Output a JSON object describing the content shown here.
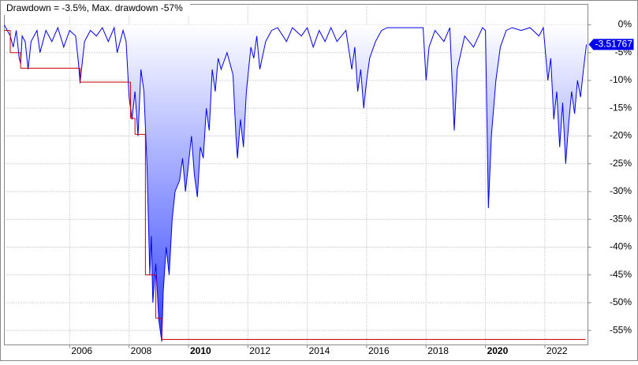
{
  "chart_data": {
    "type": "line",
    "title": "Drawdown = -3.5%, Max. drawdown -57%",
    "xlim": [
      2003.8,
      2023.45
    ],
    "xticks": [
      2006,
      2008,
      2010,
      2012,
      2014,
      2016,
      2018,
      2020,
      2022
    ],
    "bold_xticks": [
      2010,
      2020
    ],
    "ylim": [
      -57.6,
      3.7
    ],
    "yticks": [
      {
        "value": 0,
        "label": "0%"
      },
      {
        "value": -5,
        "label": "-5%"
      },
      {
        "value": -10,
        "label": "-10%"
      },
      {
        "value": -15,
        "label": "-15%"
      },
      {
        "value": -20,
        "label": "-20%"
      },
      {
        "value": -25,
        "label": "-25%"
      },
      {
        "value": -30,
        "label": "-30%"
      },
      {
        "value": -35,
        "label": "-35%"
      },
      {
        "value": -40,
        "label": "-40%"
      },
      {
        "value": -45,
        "label": "-45%"
      },
      {
        "value": -50,
        "label": "-50%"
      },
      {
        "value": -55,
        "label": "-55%"
      }
    ],
    "grid": true,
    "series": [
      {
        "name": "Drawdown",
        "color": "#0000ee",
        "fill": "#3344ff",
        "x": [
          2003.8,
          2004.0,
          2004.1,
          2004.2,
          2004.3,
          2004.35,
          2004.4,
          2004.5,
          2004.6,
          2004.7,
          2004.9,
          2005.0,
          2005.2,
          2005.4,
          2005.6,
          2005.8,
          2006.0,
          2006.2,
          2006.3,
          2006.35,
          2006.5,
          2006.7,
          2006.9,
          2007.1,
          2007.3,
          2007.5,
          2007.6,
          2007.8,
          2007.9,
          2008.0,
          2008.1,
          2008.2,
          2008.3,
          2008.4,
          2008.5,
          2008.6,
          2008.7,
          2008.75,
          2008.8,
          2008.9,
          2009.0,
          2009.1,
          2009.15,
          2009.25,
          2009.35,
          2009.45,
          2009.55,
          2009.7,
          2009.8,
          2009.9,
          2010.0,
          2010.1,
          2010.2,
          2010.3,
          2010.4,
          2010.5,
          2010.6,
          2010.7,
          2010.8,
          2010.9,
          2011.0,
          2011.1,
          2011.3,
          2011.4,
          2011.5,
          2011.6,
          2011.65,
          2011.75,
          2011.85,
          2011.95,
          2012.1,
          2012.2,
          2012.3,
          2012.4,
          2012.6,
          2012.8,
          2013.0,
          2013.3,
          2013.5,
          2013.8,
          2014.0,
          2014.2,
          2014.4,
          2014.6,
          2014.8,
          2015.0,
          2015.3,
          2015.5,
          2015.6,
          2015.7,
          2015.8,
          2015.9,
          2016.0,
          2016.1,
          2016.3,
          2016.5,
          2016.7,
          2017.0,
          2017.5,
          2017.9,
          2018.0,
          2018.1,
          2018.3,
          2018.6,
          2018.8,
          2018.95,
          2019.05,
          2019.3,
          2019.6,
          2019.9,
          2020.0,
          2020.1,
          2020.2,
          2020.35,
          2020.5,
          2020.7,
          2020.9,
          2021.2,
          2021.5,
          2021.8,
          2021.95,
          2022.1,
          2022.2,
          2022.3,
          2022.4,
          2022.5,
          2022.6,
          2022.7,
          2022.8,
          2022.9,
          2023.0,
          2023.1,
          2023.2,
          2023.3,
          2023.4
        ],
        "values": [
          0,
          -2,
          -4,
          -1,
          -6,
          -7,
          -2,
          -3,
          -8,
          -3,
          -1,
          -5,
          -1,
          -3,
          -0.5,
          -4,
          -1,
          -2,
          -7,
          -10.5,
          -3,
          -1,
          -2,
          -0.5,
          -3,
          -0.5,
          -5,
          -1,
          -3,
          -13,
          -17,
          -12,
          -20,
          -8,
          -12,
          -25,
          -45,
          -38,
          -50,
          -43,
          -53,
          -57,
          -48,
          -40,
          -45,
          -35,
          -30,
          -28,
          -24,
          -30,
          -25,
          -20,
          -27,
          -31,
          -22,
          -24,
          -15,
          -19,
          -8,
          -12,
          -6,
          -8,
          -5,
          -7,
          -9,
          -20,
          -24,
          -17,
          -22,
          -12,
          -4,
          -6,
          -2,
          -8,
          -3,
          -1,
          -0.5,
          -3,
          -0.5,
          -2,
          -0.5,
          -4,
          -1,
          -3,
          -0.5,
          -3,
          -1,
          -8,
          -4,
          -12,
          -8,
          -15,
          -10,
          -6,
          -3,
          -1,
          -0.5,
          -0.5,
          -0.5,
          -0.5,
          -10,
          -4,
          -1,
          -3,
          -0.5,
          -19,
          -8,
          -2,
          -4,
          -0.5,
          -1,
          -33,
          -20,
          -10,
          -4,
          -1,
          -0.5,
          -1,
          -0.5,
          -2,
          -0.5,
          -10,
          -6,
          -17,
          -12,
          -22,
          -14,
          -25,
          -18,
          -12,
          -16,
          -10,
          -13,
          -8,
          -3.51767
        ],
        "last_label": "-3.51767"
      },
      {
        "name": "Max. drawdown",
        "color": "#cc0000",
        "step": true,
        "x": [
          2003.8,
          2004.0,
          2004.35,
          2006.35,
          2008.05,
          2008.2,
          2008.55,
          2008.9,
          2009.1
        ],
        "values": [
          -1,
          -5,
          -7.8,
          -10.3,
          -16.8,
          -19.7,
          -45,
          -52.8,
          -56.6
        ]
      }
    ]
  }
}
